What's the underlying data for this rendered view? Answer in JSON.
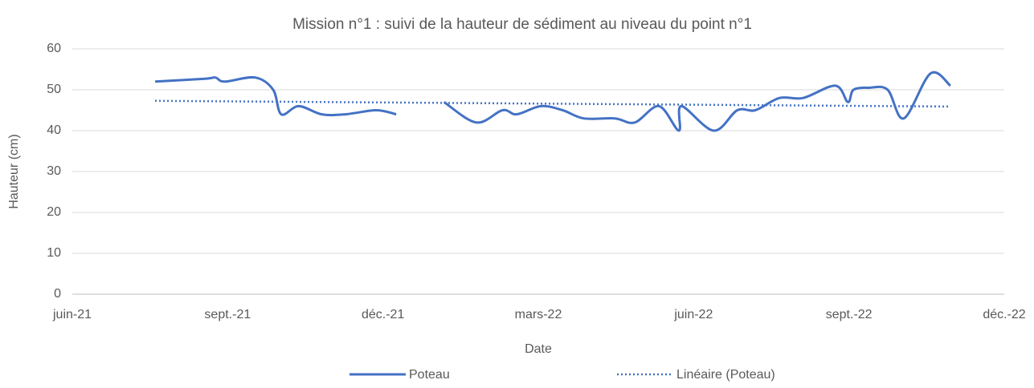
{
  "chart_data": {
    "type": "line",
    "title": "Mission n°1 : suivi de la hauteur de sédiment au niveau du point n°1",
    "xlabel": "Date",
    "ylabel": "Hauteur (cm)",
    "xlim": [
      2021.4167,
      2022.9167
    ],
    "xticks": [
      {
        "value": 2021.4167,
        "label": "juin-21"
      },
      {
        "value": 2021.6667,
        "label": "sept.-21"
      },
      {
        "value": 2021.9167,
        "label": "déc.-21"
      },
      {
        "value": 2022.1667,
        "label": "mars-22"
      },
      {
        "value": 2022.4167,
        "label": "juin-22"
      },
      {
        "value": 2022.6667,
        "label": "sept.-22"
      },
      {
        "value": 2022.9167,
        "label": "déc.-22"
      }
    ],
    "ylim": [
      0,
      60
    ],
    "yticks": [
      0,
      10,
      20,
      30,
      40,
      50,
      60
    ],
    "grid": true,
    "legend": "bottom",
    "series": [
      {
        "name": "Poteau",
        "color": "#4472c4",
        "style": "solid",
        "smooth": true,
        "x": [
          2021.55,
          2021.63,
          2021.647,
          2021.662,
          2021.711,
          2021.74,
          2021.753,
          2021.781,
          2021.818,
          2021.856,
          2021.906,
          2021.938,
          2021.977,
          2022.015,
          2022.067,
          2022.109,
          2022.132,
          2022.171,
          2022.206,
          2022.24,
          2022.29,
          2022.322,
          2022.361,
          2022.393,
          2022.397,
          2022.449,
          2022.487,
          2022.516,
          2022.555,
          2022.593,
          2022.645,
          2022.665,
          2022.674,
          2022.699,
          2022.729,
          2022.755,
          2022.798,
          2022.83
        ],
        "values": [
          52,
          52.7,
          53,
          52,
          53,
          50,
          44,
          46,
          44,
          44,
          45,
          44,
          null,
          47,
          42,
          45,
          44,
          46,
          45,
          43,
          43,
          42,
          46,
          40,
          46,
          40,
          45,
          45,
          48,
          48,
          51,
          47,
          50,
          50.5,
          50,
          43,
          54,
          51
        ]
      },
      {
        "name": "Linéaire (Poteau)",
        "color": "#4472c4",
        "style": "dotted",
        "smooth": false,
        "x": [
          2021.55,
          2022.83
        ],
        "values": [
          47.3,
          45.9
        ]
      }
    ]
  }
}
